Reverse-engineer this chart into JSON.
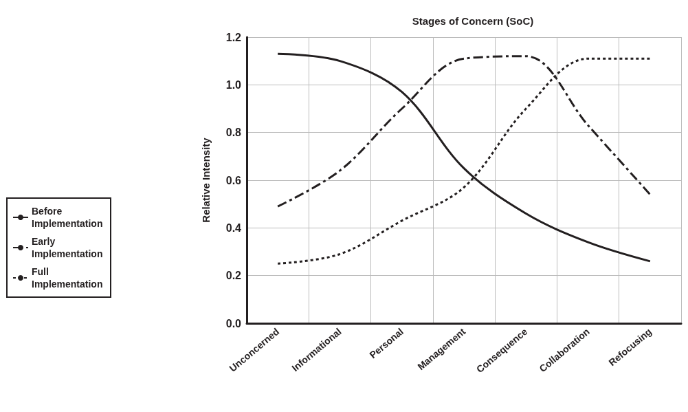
{
  "chart_data": {
    "type": "line",
    "title": "Stages of Concern (SoC)",
    "ylabel": "Relative Intensity",
    "categories": [
      "Unconcerned",
      "Informational",
      "Personal",
      "Management",
      "Consequence",
      "Collaboration",
      "Refocusing"
    ],
    "series": [
      {
        "name": "Before Implementation",
        "color": "#231f20",
        "line_style": "solid",
        "values": [
          1.13,
          1.1,
          0.97,
          0.65,
          0.46,
          0.34,
          0.26
        ]
      },
      {
        "name": "Early Implementation",
        "color": "#231f20",
        "line_style": "dashed",
        "values": [
          0.49,
          0.64,
          0.9,
          1.11,
          1.12,
          0.83,
          0.54
        ]
      },
      {
        "name": "Full Implementation",
        "color": "#231f20",
        "line_style": "dotted",
        "values": [
          0.25,
          0.29,
          0.43,
          0.57,
          0.9,
          1.11,
          1.11
        ]
      }
    ],
    "ylim": [
      0,
      1.2
    ],
    "yticks": [
      {
        "value": 0,
        "label": "0.0"
      },
      0.2,
      0.4,
      0.6,
      0.8,
      {
        "value": 1,
        "label": "1.0"
      },
      1.2
    ],
    "grid": true,
    "legend": "left",
    "marker": "none"
  }
}
